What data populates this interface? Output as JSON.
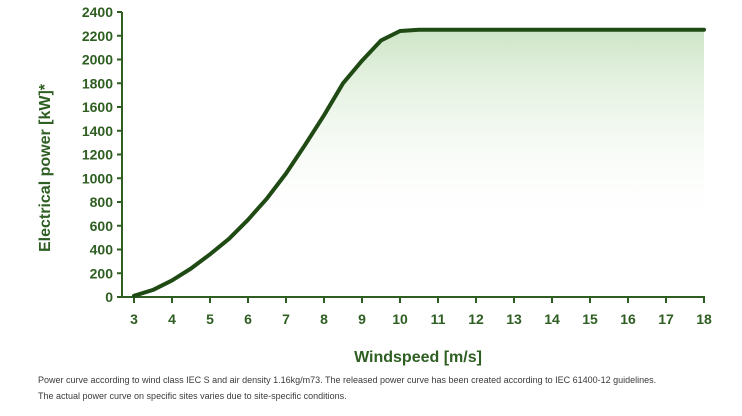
{
  "colors": {
    "line": "#1f4a14",
    "axis": "#2e5e22",
    "fill_top": "#c8e2c0",
    "fill_bottom": "#ffffff"
  },
  "chart_data": {
    "type": "area",
    "title": "",
    "xlabel": "Windspeed [m/s]",
    "ylabel": "Electrical power [kW]*",
    "xlim": [
      3,
      18
    ],
    "ylim": [
      0,
      2400
    ],
    "xticks": [
      3,
      4,
      5,
      6,
      7,
      8,
      9,
      10,
      11,
      12,
      13,
      14,
      15,
      16,
      17,
      18
    ],
    "yticks": [
      0,
      200,
      400,
      600,
      800,
      1000,
      1200,
      1400,
      1600,
      1800,
      2000,
      2200,
      2400
    ],
    "grid": false,
    "series": [
      {
        "x": [
          3,
          3.5,
          4,
          4.5,
          5,
          5.5,
          6,
          6.5,
          7,
          7.5,
          8,
          8.5,
          9,
          9.5,
          10,
          10.5,
          11,
          12,
          13,
          14,
          15,
          16,
          17,
          18
        ],
        "y": [
          10,
          60,
          140,
          240,
          360,
          490,
          650,
          830,
          1040,
          1280,
          1530,
          1800,
          1990,
          2160,
          2240,
          2250,
          2250,
          2250,
          2250,
          2250,
          2250,
          2250,
          2250,
          2250
        ]
      }
    ]
  },
  "footnote": {
    "line1": "Power curve according to wind class IEC S and air density 1.16kg/m73. The released power curve has been created according to IEC 61400-12 guidelines.",
    "line2": "The actual power curve on specific sites varies due to site-specific conditions."
  }
}
